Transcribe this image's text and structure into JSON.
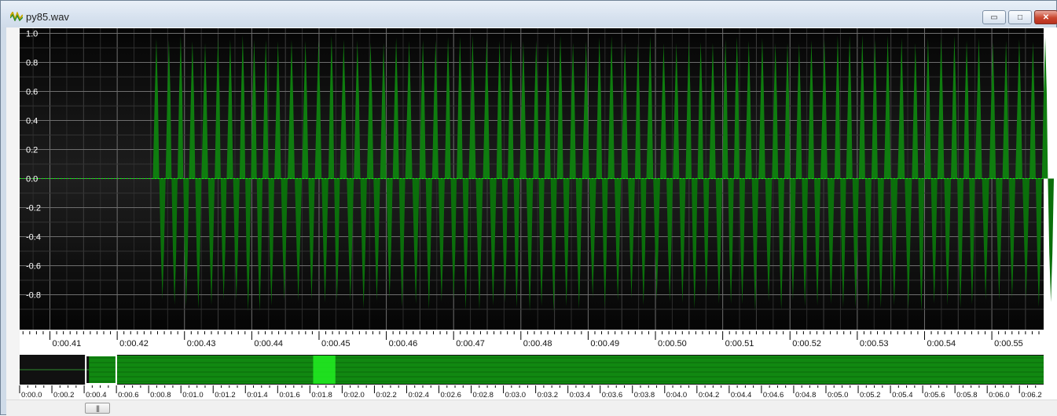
{
  "window": {
    "title": "py85.wav",
    "icons": {
      "app": "waveform-app-icon",
      "minimize": "minimize-icon",
      "maximize": "maximize-icon",
      "close": "close-icon"
    },
    "minimize_glyph": "▭",
    "maximize_glyph": "□",
    "close_glyph": "✕"
  },
  "waveform": {
    "y_axis_labels": [
      "1.0",
      "0.8",
      "0.6",
      "0.4",
      "0.2",
      "0.0",
      "-0.2",
      "-0.4",
      "-0.6",
      "-0.8"
    ],
    "y_axis_values": [
      1.0,
      0.8,
      0.6,
      0.4,
      0.2,
      0.0,
      -0.2,
      -0.4,
      -0.6,
      -0.8
    ],
    "time_labels": [
      "0:00.41",
      "0:00.42",
      "0:00.43",
      "0:00.44",
      "0:00.45",
      "0:00.46",
      "0:00.47",
      "0:00.48",
      "0:00.49",
      "0:00.50",
      "0:00.51",
      "0:00.52",
      "0:00.53",
      "0:00.54",
      "0:00.55"
    ],
    "time_start": 0.4055,
    "time_end": 0.5577,
    "signal_start": 0.4253,
    "colors": {
      "background": "#000000",
      "wave": "#0f7d0f",
      "grid": "#6e6e6e",
      "zero_line": "#00ff00"
    }
  },
  "overview": {
    "time_labels": [
      "0:00.0",
      "0:00.2",
      "0:00.4",
      "0:00.6",
      "0:00.8",
      "0:01.0",
      "0:01.2",
      "0:01.4",
      "0:01.6",
      "0:01.8",
      "0:02.0",
      "0:02.2",
      "0:02.4",
      "0:02.6",
      "0:02.8",
      "0:03.0",
      "0:03.2",
      "0:03.4",
      "0:03.6",
      "0:03.8",
      "0:04.0",
      "0:04.2",
      "0:04.4",
      "0:04.6",
      "0:04.8",
      "0:05.0",
      "0:05.2",
      "0:05.4",
      "0:05.6",
      "0:05.8",
      "0:06.0",
      "0:06.2"
    ],
    "duration_hint": 6.35,
    "view_window": [
      0.41,
      0.56
    ],
    "highlight_window": [
      1.82,
      1.88
    ],
    "signal_start": 0.43,
    "colors": {
      "signal": "#118811",
      "highlight": "#22ee22",
      "background": "#111111"
    }
  },
  "scrollbar": {
    "grip": "|||",
    "grip_icon": "scroll-grip-icon"
  }
}
